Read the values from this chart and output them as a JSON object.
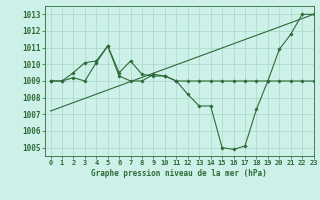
{
  "title": "Graphe pression niveau de la mer (hPa)",
  "background_color": "#cdf0e8",
  "line_color": "#2d6b38",
  "grid_color": "#a8d8c8",
  "xlim": [
    -0.5,
    23
  ],
  "ylim": [
    1004.5,
    1013.5
  ],
  "yticks": [
    1005,
    1006,
    1007,
    1008,
    1009,
    1010,
    1011,
    1012,
    1013
  ],
  "xticks": [
    0,
    1,
    2,
    3,
    4,
    5,
    6,
    7,
    8,
    9,
    10,
    11,
    12,
    13,
    14,
    15,
    16,
    17,
    18,
    19,
    20,
    21,
    22,
    23
  ],
  "series": [
    {
      "x": [
        0,
        1,
        2,
        3,
        4,
        5,
        6,
        7,
        8,
        9,
        10,
        11,
        12,
        13,
        14,
        15,
        16,
        17,
        18,
        19,
        20,
        21,
        22,
        23
      ],
      "y": [
        1009.0,
        1009.0,
        1009.2,
        1009.0,
        1010.1,
        1011.1,
        1009.5,
        1010.2,
        1009.4,
        1009.3,
        1009.3,
        1009.0,
        1008.2,
        1007.5,
        1007.5,
        1005.0,
        1004.9,
        1005.1,
        1007.3,
        1009.0,
        1010.9,
        1011.8,
        1013.0,
        1013.0
      ],
      "markers": true
    },
    {
      "x": [
        0,
        1,
        2,
        3,
        4,
        5,
        6,
        7,
        8,
        9,
        10,
        11,
        12,
        13,
        14,
        15,
        16,
        17,
        18,
        19,
        20,
        21,
        22,
        23
      ],
      "y": [
        1009.0,
        1009.0,
        1009.5,
        1010.1,
        1010.2,
        1011.1,
        1009.3,
        1009.0,
        1009.0,
        1009.4,
        1009.3,
        1009.0,
        1009.0,
        1009.0,
        1009.0,
        1009.0,
        1009.0,
        1009.0,
        1009.0,
        1009.0,
        1009.0,
        1009.0,
        1009.0,
        1009.0
      ],
      "markers": true
    },
    {
      "x": [
        0,
        23
      ],
      "y": [
        1007.2,
        1013.0
      ],
      "markers": false
    }
  ]
}
